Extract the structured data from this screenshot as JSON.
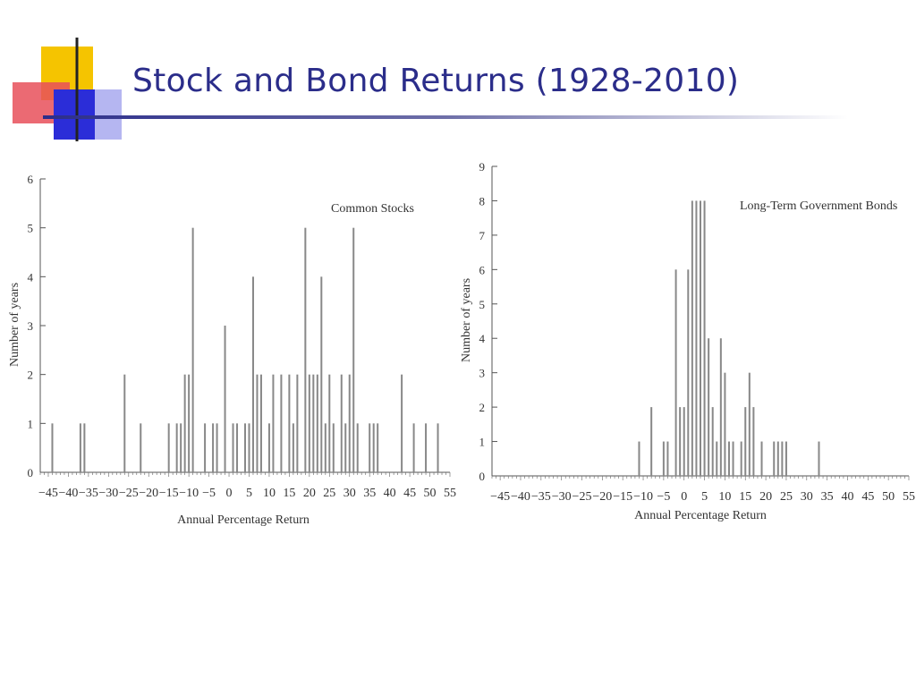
{
  "slide": {
    "title": "Stock and Bond Returns (1928-2010)",
    "title_color": "#2b2d8a"
  },
  "chart_data": [
    {
      "type": "bar",
      "title": "Common Stocks",
      "xlabel": "Annual Percentage Return",
      "ylabel": "Number of years",
      "xlim": [
        -47,
        55
      ],
      "ylim": [
        0,
        6
      ],
      "xticks": [
        -45,
        -40,
        -35,
        -30,
        -25,
        -20,
        -15,
        -10,
        -5,
        0,
        5,
        10,
        15,
        20,
        25,
        30,
        35,
        40,
        45,
        50,
        55
      ],
      "yticks": [
        0,
        1,
        2,
        3,
        4,
        5,
        6
      ],
      "grid": false,
      "bar_color": "#888888",
      "x": [
        -44,
        -37,
        -36,
        -26,
        -22,
        -15,
        -13,
        -12,
        -11,
        -10,
        -9,
        -6,
        -4,
        -3,
        -1,
        1,
        2,
        4,
        5,
        6,
        7,
        8,
        10,
        11,
        13,
        15,
        16,
        17,
        19,
        20,
        21,
        22,
        23,
        24,
        25,
        26,
        28,
        29,
        30,
        31,
        32,
        35,
        36,
        37,
        43,
        46,
        49,
        52
      ],
      "values": [
        1,
        1,
        1,
        2,
        1,
        1,
        1,
        1,
        2,
        2,
        5,
        1,
        1,
        1,
        3,
        1,
        1,
        1,
        1,
        4,
        2,
        2,
        1,
        2,
        2,
        2,
        1,
        2,
        5,
        2,
        2,
        2,
        4,
        1,
        2,
        1,
        2,
        1,
        2,
        5,
        1,
        1,
        1,
        1,
        2,
        1,
        1,
        1
      ]
    },
    {
      "type": "bar",
      "title": "Long-Term Government Bonds",
      "xlabel": "Annual Percentage Return",
      "ylabel": "Number of years",
      "xlim": [
        -47,
        55
      ],
      "ylim": [
        0,
        9
      ],
      "xticks": [
        -45,
        -40,
        -35,
        -30,
        -25,
        -20,
        -15,
        -10,
        -5,
        0,
        5,
        10,
        15,
        20,
        25,
        30,
        35,
        40,
        45,
        50,
        55
      ],
      "yticks": [
        0,
        1,
        2,
        3,
        4,
        5,
        6,
        7,
        8,
        9
      ],
      "grid": false,
      "bar_color": "#888888",
      "x": [
        -11,
        -8,
        -5,
        -4,
        -2,
        -1,
        0,
        1,
        2,
        3,
        4,
        5,
        6,
        7,
        8,
        9,
        10,
        11,
        12,
        14,
        15,
        16,
        17,
        19,
        22,
        23,
        24,
        25,
        33
      ],
      "values": [
        1,
        2,
        1,
        1,
        6,
        2,
        2,
        6,
        8,
        8,
        8,
        8,
        4,
        2,
        1,
        4,
        3,
        1,
        1,
        1,
        2,
        3,
        2,
        1,
        1,
        1,
        1,
        1,
        1
      ]
    }
  ]
}
